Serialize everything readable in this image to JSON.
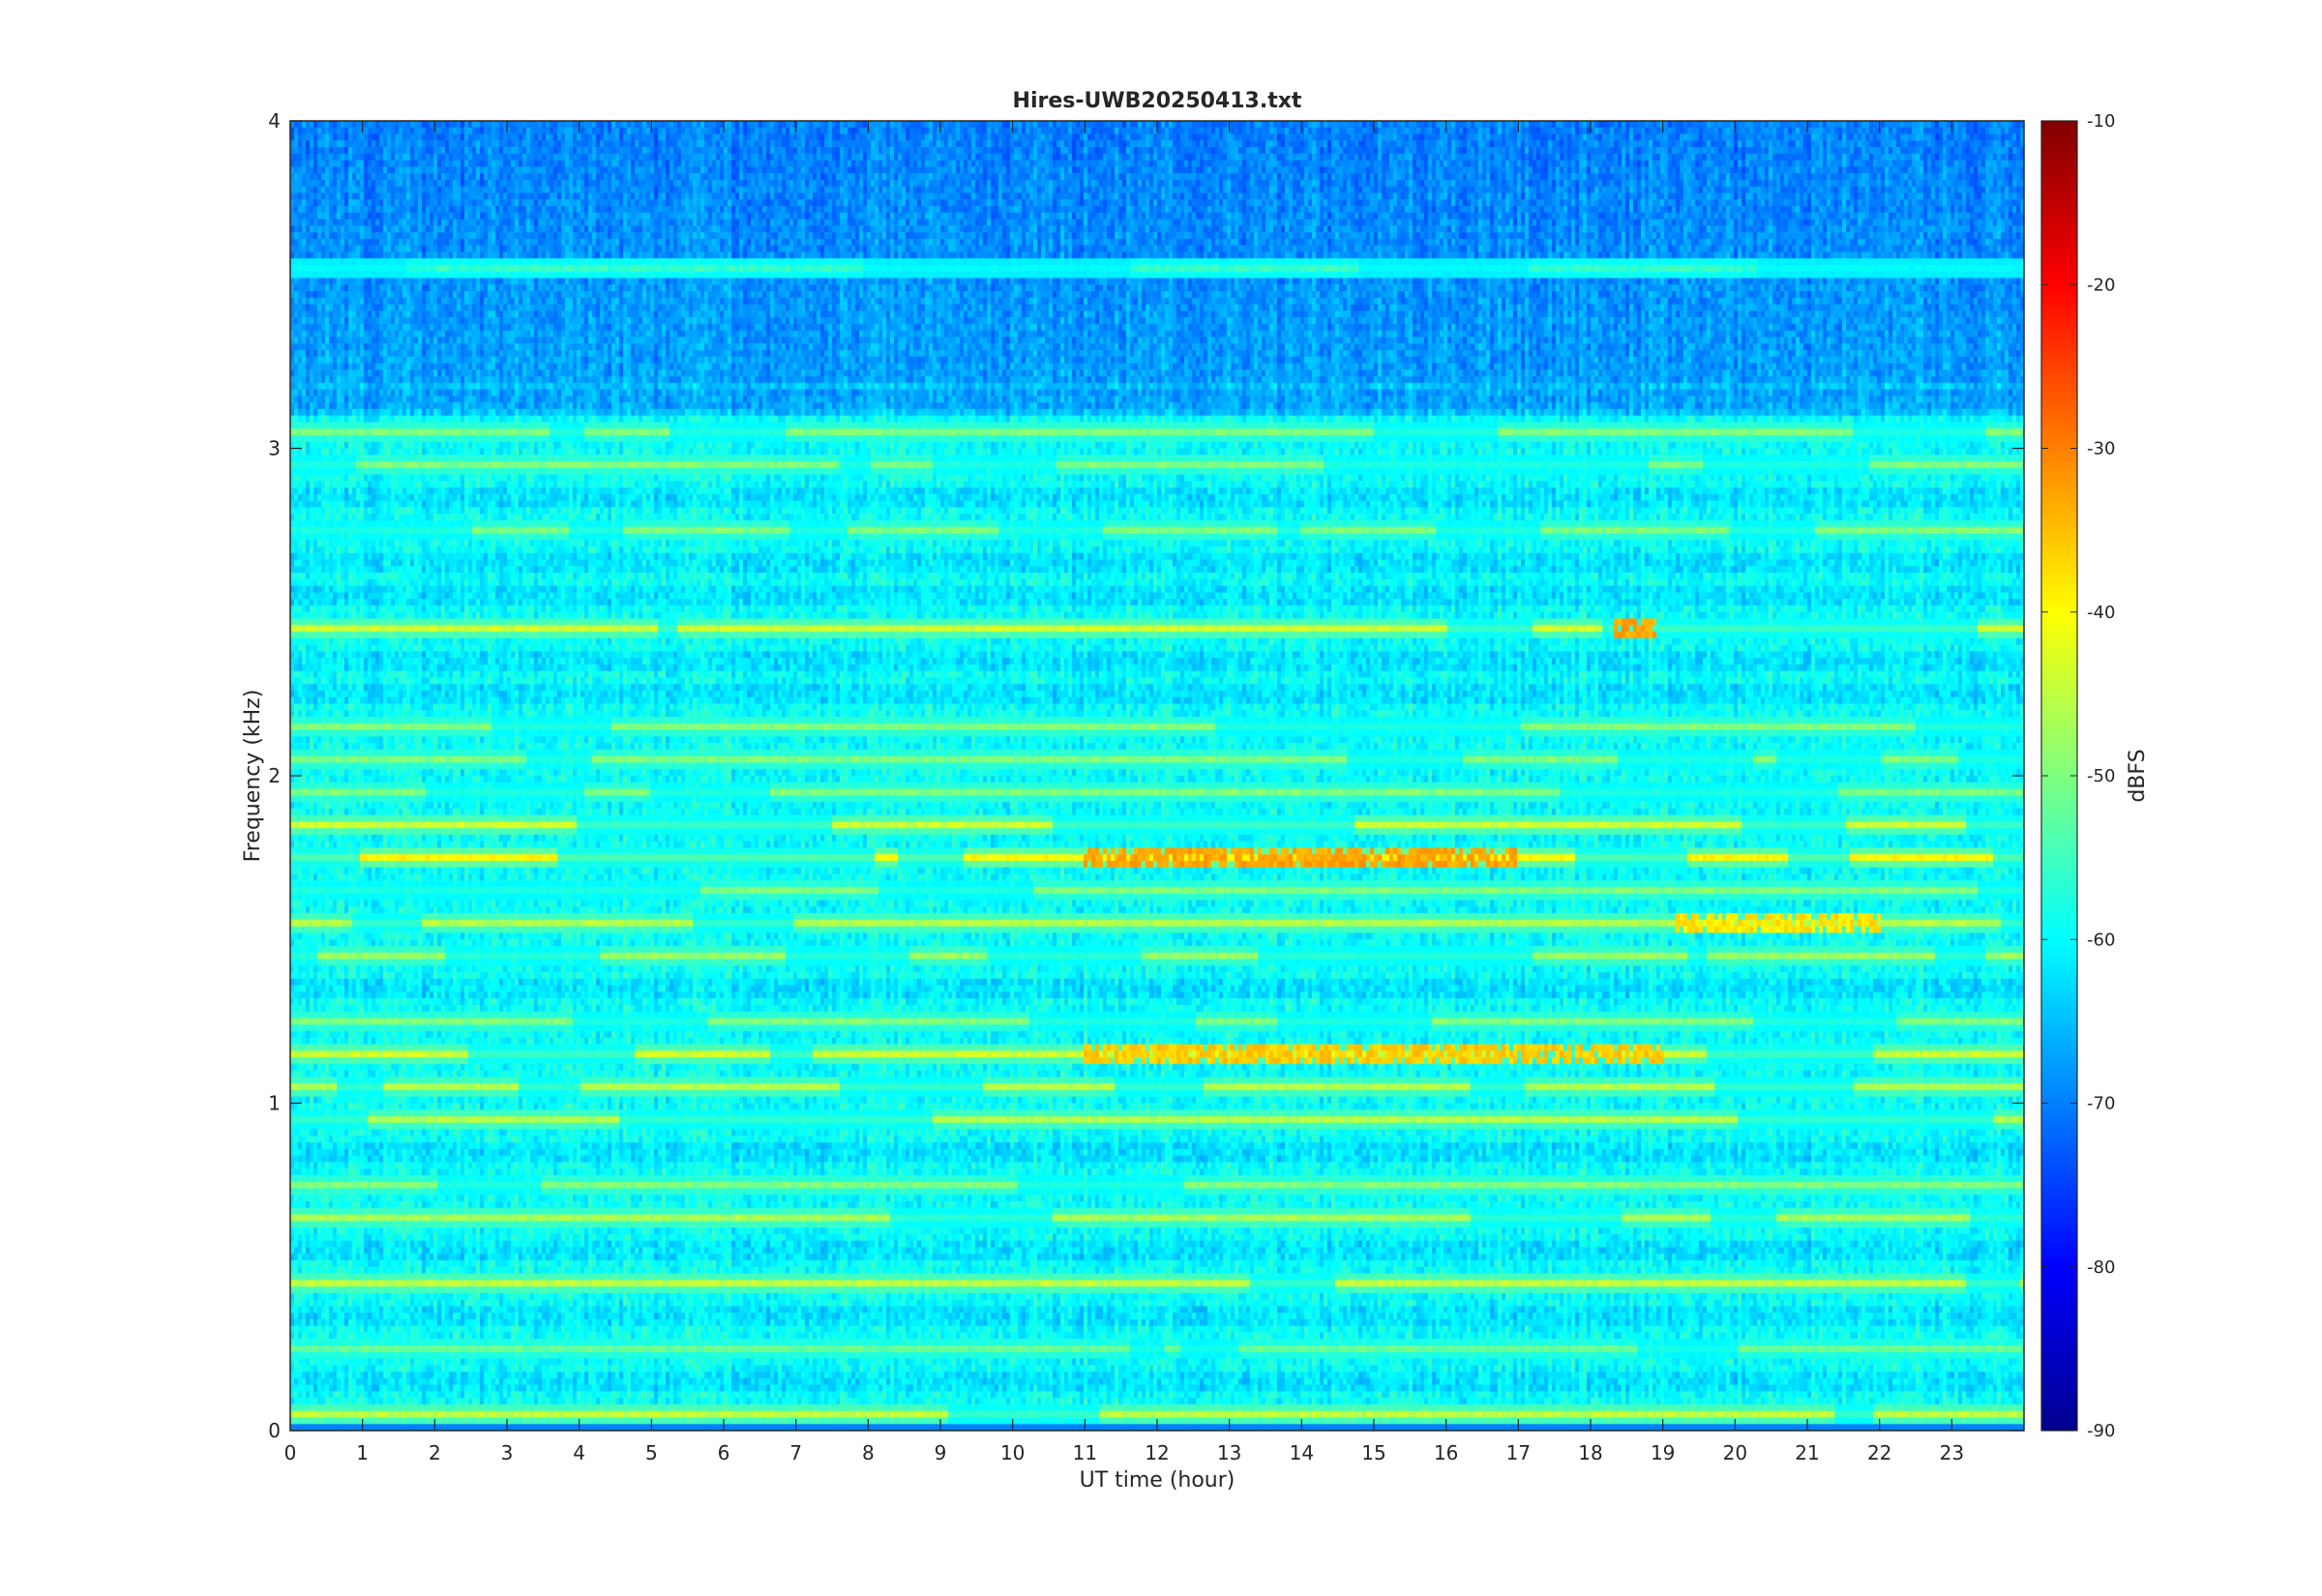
{
  "chart_data": {
    "type": "heatmap",
    "title": "Hires-UWB20250413.txt",
    "xlabel": "UT time (hour)",
    "ylabel": "Frequency (kHz)",
    "xlim": [
      0,
      24
    ],
    "ylim": [
      0,
      4
    ],
    "x_ticks": [
      "0",
      "1",
      "2",
      "3",
      "4",
      "5",
      "6",
      "7",
      "8",
      "9",
      "10",
      "11",
      "12",
      "13",
      "14",
      "15",
      "16",
      "17",
      "18",
      "19",
      "20",
      "21",
      "22",
      "23"
    ],
    "y_ticks": [
      "0",
      "1",
      "2",
      "3",
      "4"
    ],
    "colorbar": {
      "label": "dBFS",
      "range": [
        -90,
        -10
      ],
      "ticks": [
        "-10",
        "-20",
        "-30",
        "-40",
        "-50",
        "-60",
        "-70",
        "-80",
        "-90"
      ],
      "colormap": "jet"
    },
    "frequency_bands_khz": [
      0.05,
      0.25,
      0.45,
      0.65,
      0.75,
      0.95,
      1.05,
      1.15,
      1.25,
      1.45,
      1.55,
      1.65,
      1.75,
      1.85,
      1.95,
      2.05,
      2.15,
      2.45,
      2.75,
      2.95,
      3.05,
      3.55
    ],
    "band_levels_dbfs": [
      -45,
      -52,
      -45,
      -47,
      -50,
      -46,
      -46,
      -44,
      -50,
      -48,
      -46,
      -50,
      -40,
      -44,
      -50,
      -50,
      -50,
      -44,
      -50,
      -50,
      -50,
      -56
    ],
    "background_level_dbfs": -62,
    "hotspots": [
      {
        "label": "1.75 kHz, 11-17 UT",
        "t_range": [
          11,
          17
        ],
        "freq_khz": 1.75,
        "level_dbfs": -33
      },
      {
        "label": "1.15 kHz, 11-19 UT",
        "t_range": [
          11,
          19
        ],
        "freq_khz": 1.15,
        "level_dbfs": -36
      },
      {
        "label": "2.45 kHz, 18.5 UT",
        "t_range": [
          18.3,
          18.9
        ],
        "freq_khz": 2.45,
        "level_dbfs": -33
      },
      {
        "label": "1.55 kHz, 19-22 UT",
        "t_range": [
          19.2,
          22
        ],
        "freq_khz": 1.55,
        "level_dbfs": -38
      }
    ],
    "grid": false
  }
}
